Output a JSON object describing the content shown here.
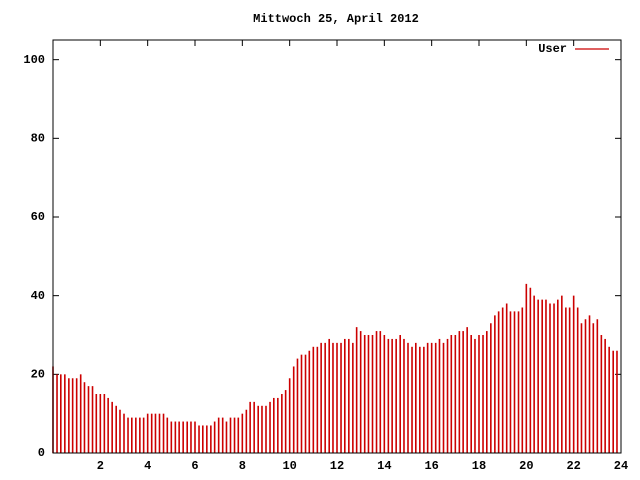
{
  "chart_data": {
    "type": "impulse",
    "title": "Mittwoch 25, April 2012",
    "x": [
      0,
      0.17,
      0.33,
      0.5,
      0.67,
      0.83,
      1,
      1.17,
      1.33,
      1.5,
      1.67,
      1.83,
      2,
      2.17,
      2.33,
      2.5,
      2.67,
      2.83,
      3,
      3.17,
      3.33,
      3.5,
      3.67,
      3.83,
      4,
      4.17,
      4.33,
      4.5,
      4.67,
      4.83,
      5,
      5.17,
      5.33,
      5.5,
      5.67,
      5.83,
      6,
      6.17,
      6.33,
      6.5,
      6.67,
      6.83,
      7,
      7.17,
      7.33,
      7.5,
      7.67,
      7.83,
      8,
      8.17,
      8.33,
      8.5,
      8.67,
      8.83,
      9,
      9.17,
      9.33,
      9.5,
      9.67,
      9.83,
      10,
      10.17,
      10.33,
      10.5,
      10.67,
      10.83,
      11,
      11.17,
      11.33,
      11.5,
      11.67,
      11.83,
      12,
      12.17,
      12.33,
      12.5,
      12.67,
      12.83,
      13,
      13.17,
      13.33,
      13.5,
      13.67,
      13.83,
      14,
      14.17,
      14.33,
      14.5,
      14.67,
      14.83,
      15,
      15.17,
      15.33,
      15.5,
      15.67,
      15.83,
      16,
      16.17,
      16.33,
      16.5,
      16.67,
      16.83,
      17,
      17.17,
      17.33,
      17.5,
      17.67,
      17.83,
      18,
      18.17,
      18.33,
      18.5,
      18.67,
      18.83,
      19,
      19.17,
      19.33,
      19.5,
      19.67,
      19.83,
      20,
      20.17,
      20.33,
      20.5,
      20.67,
      20.83,
      21,
      21.17,
      21.33,
      21.5,
      21.67,
      21.83,
      22,
      22.17,
      22.33,
      22.5,
      22.67,
      22.83,
      23,
      23.17,
      23.33,
      23.5,
      23.67,
      23.83
    ],
    "series": [
      {
        "name": "User",
        "color": "#cc0000",
        "values": [
          22,
          20,
          20,
          20,
          19,
          19,
          19,
          20,
          18,
          17,
          17,
          15,
          15,
          15,
          14,
          13,
          12,
          11,
          10,
          9,
          9,
          9,
          9,
          9,
          10,
          10,
          10,
          10,
          10,
          9,
          8,
          8,
          8,
          8,
          8,
          8,
          8,
          7,
          7,
          7,
          7,
          8,
          9,
          9,
          8,
          9,
          9,
          9,
          10,
          11,
          13,
          13,
          12,
          12,
          12,
          13,
          14,
          14,
          15,
          16,
          19,
          22,
          24,
          25,
          25,
          26,
          27,
          27,
          28,
          28,
          29,
          28,
          28,
          28,
          29,
          29,
          28,
          32,
          31,
          30,
          30,
          30,
          31,
          31,
          30,
          29,
          29,
          29,
          30,
          29,
          28,
          27,
          28,
          27,
          27,
          28,
          28,
          28,
          29,
          28,
          29,
          30,
          30,
          31,
          31,
          32,
          30,
          29,
          30,
          30,
          31,
          33,
          35,
          36,
          37,
          38,
          36,
          36,
          36,
          37,
          43,
          42,
          40,
          39,
          39,
          39,
          38,
          38,
          39,
          40,
          37,
          37,
          40,
          37,
          33,
          34,
          35,
          33,
          34,
          30,
          29,
          27,
          26,
          26
        ]
      }
    ],
    "xlim": [
      0,
      24
    ],
    "xticks": [
      2,
      4,
      6,
      8,
      10,
      12,
      14,
      16,
      18,
      20,
      22,
      24
    ],
    "ylim": [
      0,
      105
    ],
    "yticks": [
      0,
      20,
      40,
      60,
      80,
      100
    ],
    "legend": "top-right"
  }
}
